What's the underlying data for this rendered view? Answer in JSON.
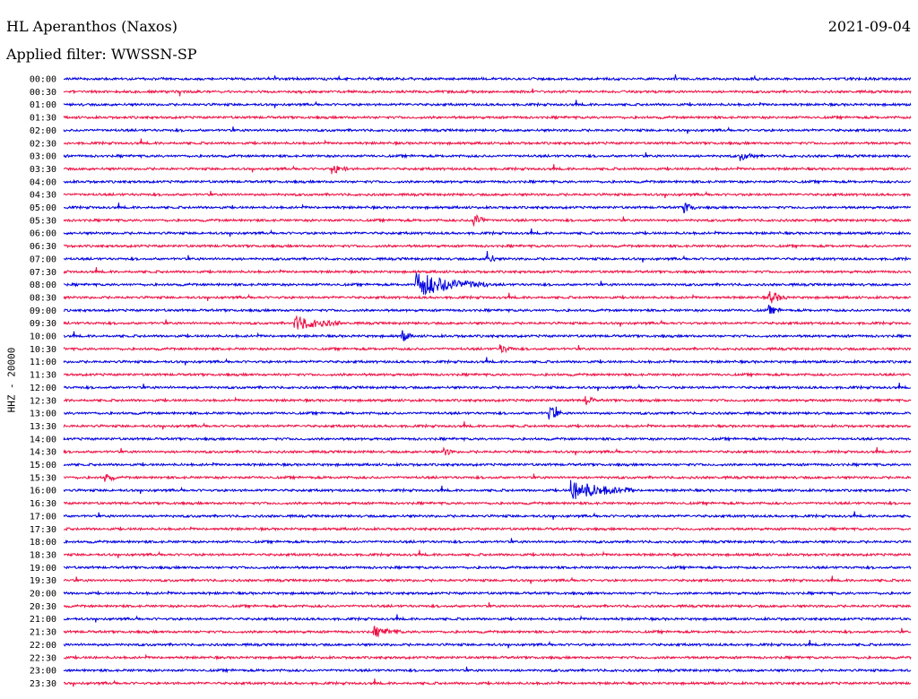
{
  "header": {
    "station": "HL Aperanthos (Naxos)",
    "date": "2021-09-04",
    "filter": "Applied filter: WWSSN-SP"
  },
  "chart_data": {
    "type": "line",
    "subtype": "helicorder",
    "ylabel": "HHZ - 20000",
    "colors": [
      "#0000e0",
      "#ee1144"
    ],
    "rows": [
      "00:00",
      "00:30",
      "01:00",
      "01:30",
      "02:00",
      "02:30",
      "03:00",
      "03:30",
      "04:00",
      "04:30",
      "05:00",
      "05:30",
      "06:00",
      "06:30",
      "07:00",
      "07:30",
      "08:00",
      "08:30",
      "09:00",
      "09:30",
      "10:00",
      "10:30",
      "11:00",
      "11:30",
      "12:00",
      "12:30",
      "13:00",
      "13:30",
      "14:00",
      "14:30",
      "15:00",
      "15:30",
      "16:00",
      "16:30",
      "17:00",
      "17:30",
      "18:00",
      "18:30",
      "19:00",
      "19:30",
      "20:00",
      "20:30",
      "21:00",
      "21:30",
      "22:00",
      "22:30",
      "23:00",
      "23:30"
    ],
    "row_minutes": 30,
    "events": [
      {
        "row": "08:00",
        "minute": 12.5,
        "amplitude": 14,
        "duration": 2.5
      },
      {
        "row": "16:00",
        "minute": 18.0,
        "amplitude": 11,
        "duration": 2.2
      },
      {
        "row": "09:30",
        "minute": 8.2,
        "amplitude": 8,
        "duration": 1.6
      },
      {
        "row": "21:30",
        "minute": 11.0,
        "amplitude": 5,
        "duration": 1.0
      },
      {
        "row": "07:00",
        "minute": 15.0,
        "amplitude": 8,
        "duration": 0.3
      },
      {
        "row": "13:00",
        "minute": 17.2,
        "amplitude": 9,
        "duration": 0.4
      },
      {
        "row": "05:30",
        "minute": 14.5,
        "amplitude": 8,
        "duration": 0.5
      },
      {
        "row": "03:30",
        "minute": 9.5,
        "amplitude": 5,
        "duration": 0.6
      },
      {
        "row": "08:30",
        "minute": 25.0,
        "amplitude": 7,
        "duration": 0.6
      },
      {
        "row": "10:00",
        "minute": 12.0,
        "amplitude": 6,
        "duration": 0.3
      },
      {
        "row": "05:00",
        "minute": 22.0,
        "amplitude": 5,
        "duration": 0.4
      },
      {
        "row": "03:00",
        "minute": 24.0,
        "amplitude": 4,
        "duration": 0.6
      },
      {
        "row": "12:30",
        "minute": 18.5,
        "amplitude": 5,
        "duration": 0.3
      },
      {
        "row": "09:00",
        "minute": 25.0,
        "amplitude": 4,
        "duration": 0.4
      },
      {
        "row": "15:30",
        "minute": 1.5,
        "amplitude": 5,
        "duration": 0.3
      },
      {
        "row": "14:30",
        "minute": 13.5,
        "amplitude": 4,
        "duration": 0.3
      },
      {
        "row": "10:30",
        "minute": 15.5,
        "amplitude": 4,
        "duration": 0.5
      }
    ]
  }
}
